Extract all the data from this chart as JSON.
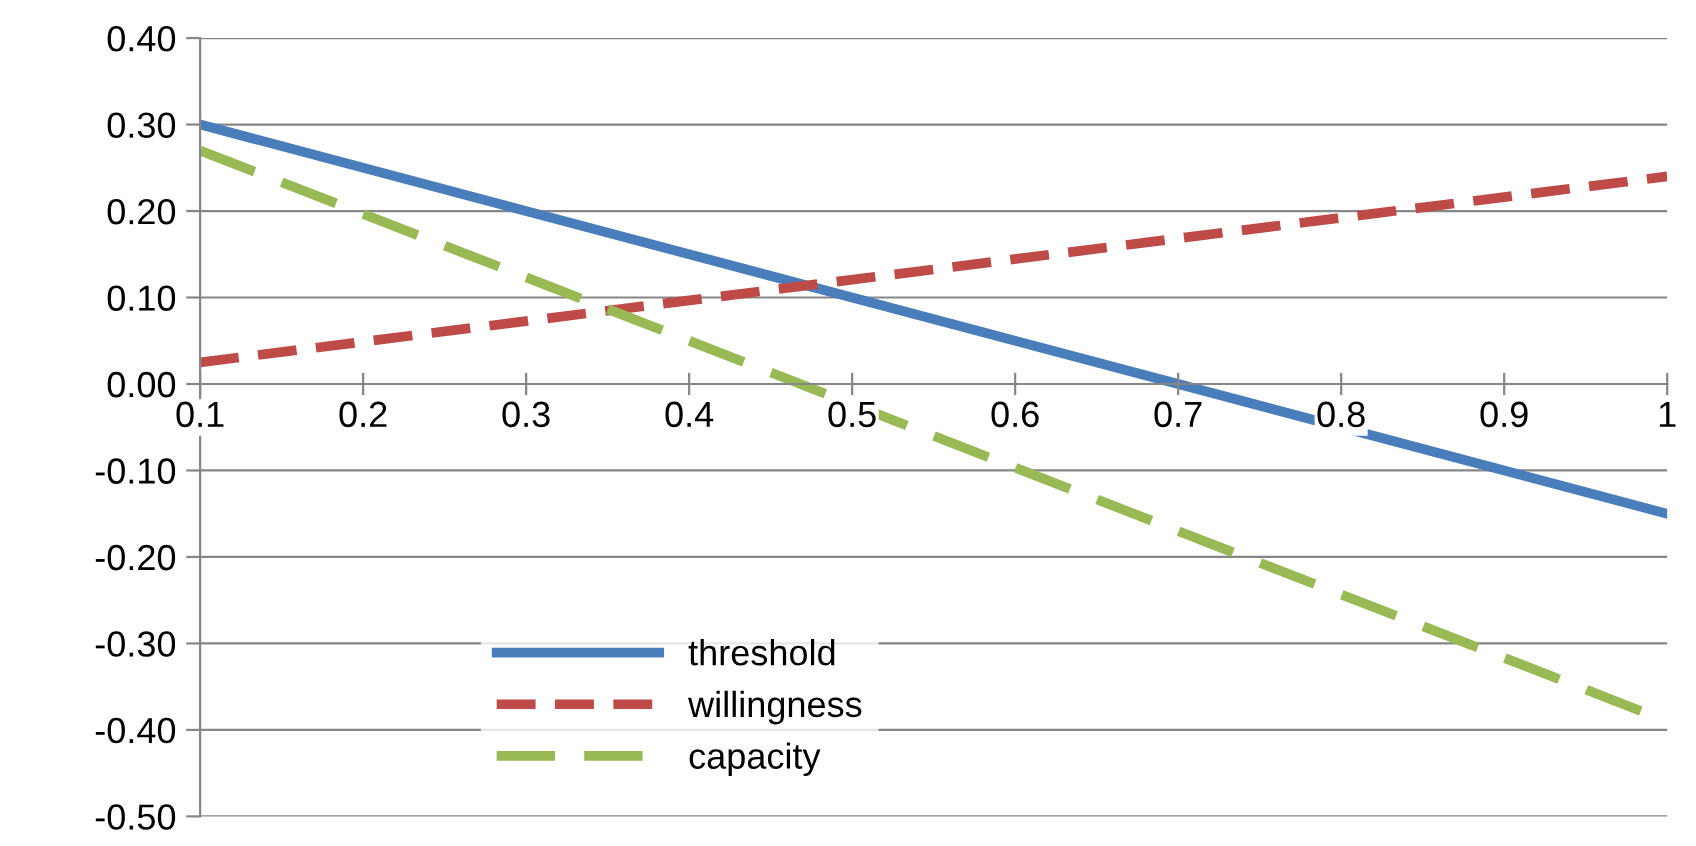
{
  "chart_data": {
    "type": "line",
    "x": [
      0.1,
      1
    ],
    "series": [
      {
        "name": "threshold",
        "color": "#4a7ebb",
        "values": [
          0.3,
          -0.15
        ],
        "line_style": "solid"
      },
      {
        "name": "willingness",
        "color": "#be4b48",
        "values": [
          0.025,
          0.24
        ],
        "line_style": "dashed"
      },
      {
        "name": "capacity",
        "color": "#98b954",
        "values": [
          0.27,
          -0.39
        ],
        "line_style": "dashed"
      }
    ],
    "xlim": [
      0.1,
      1
    ],
    "xticks": [
      0.1,
      0.2,
      0.3,
      0.4,
      0.5,
      0.6,
      0.7,
      0.8,
      0.9,
      1
    ],
    "ylim": [
      -0.5,
      0.4
    ],
    "yticks": [
      {
        "value": -0.5,
        "label": "-0.50"
      },
      {
        "value": -0.4,
        "label": "-0.40"
      },
      {
        "value": -0.3,
        "label": "-0.30"
      },
      {
        "value": -0.2,
        "label": "-0.20"
      },
      {
        "value": -0.1,
        "label": "-0.10"
      },
      {
        "value": 0,
        "label": "0.00"
      },
      {
        "value": 0.1,
        "label": "0.10"
      },
      {
        "value": 0.2,
        "label": "0.20"
      },
      {
        "value": 0.3,
        "label": "0.30"
      },
      {
        "value": 0.4,
        "label": "0.40"
      }
    ],
    "grid": "y",
    "legend": "bottom left",
    "marker": "none"
  }
}
